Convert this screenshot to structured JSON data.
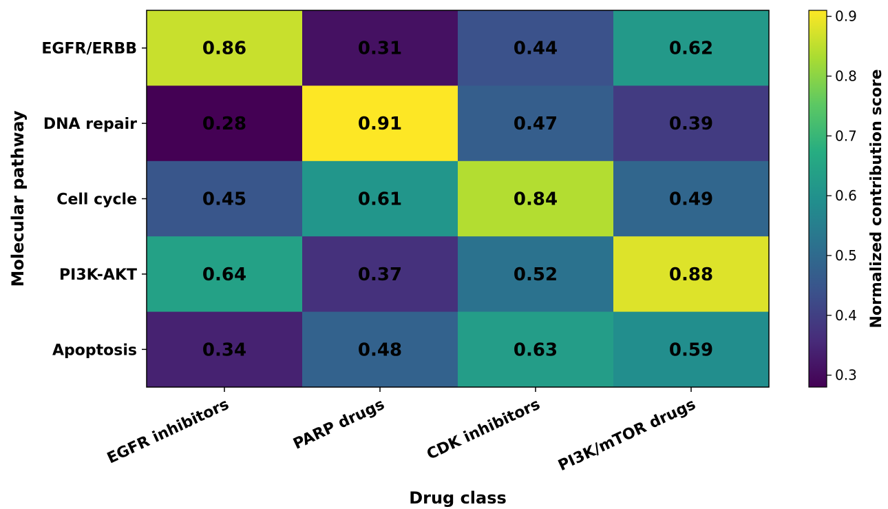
{
  "chart_data": {
    "type": "heatmap",
    "title": "",
    "xlabel": "Drug class",
    "ylabel": "Molecular pathway",
    "x_categories": [
      "EGFR inhibitors",
      "PARP drugs",
      "CDK inhibitors",
      "PI3K/mTOR drugs"
    ],
    "y_categories": [
      "EGFR/ERBB",
      "DNA repair",
      "Cell cycle",
      "PI3K-AKT",
      "Apoptosis"
    ],
    "values": [
      [
        0.86,
        0.31,
        0.44,
        0.62
      ],
      [
        0.28,
        0.91,
        0.47,
        0.39
      ],
      [
        0.45,
        0.61,
        0.84,
        0.49
      ],
      [
        0.64,
        0.37,
        0.52,
        0.88
      ],
      [
        0.34,
        0.48,
        0.63,
        0.59
      ]
    ],
    "value_labels": [
      [
        "0.86",
        "0.31",
        "0.44",
        "0.62"
      ],
      [
        "0.28",
        "0.91",
        "0.47",
        "0.39"
      ],
      [
        "0.45",
        "0.61",
        "0.84",
        "0.49"
      ],
      [
        "0.64",
        "0.37",
        "0.52",
        "0.88"
      ],
      [
        "0.34",
        "0.48",
        "0.63",
        "0.59"
      ]
    ],
    "colormap": "viridis",
    "colorbar": {
      "label": "Normalized contribution score",
      "range": [
        0.28,
        0.91
      ],
      "ticks": [
        0.3,
        0.4,
        0.5,
        0.6,
        0.7,
        0.8,
        0.9
      ],
      "tick_labels": [
        "0.3",
        "0.4",
        "0.5",
        "0.6",
        "0.7",
        "0.8",
        "0.9"
      ]
    },
    "grid": false
  }
}
